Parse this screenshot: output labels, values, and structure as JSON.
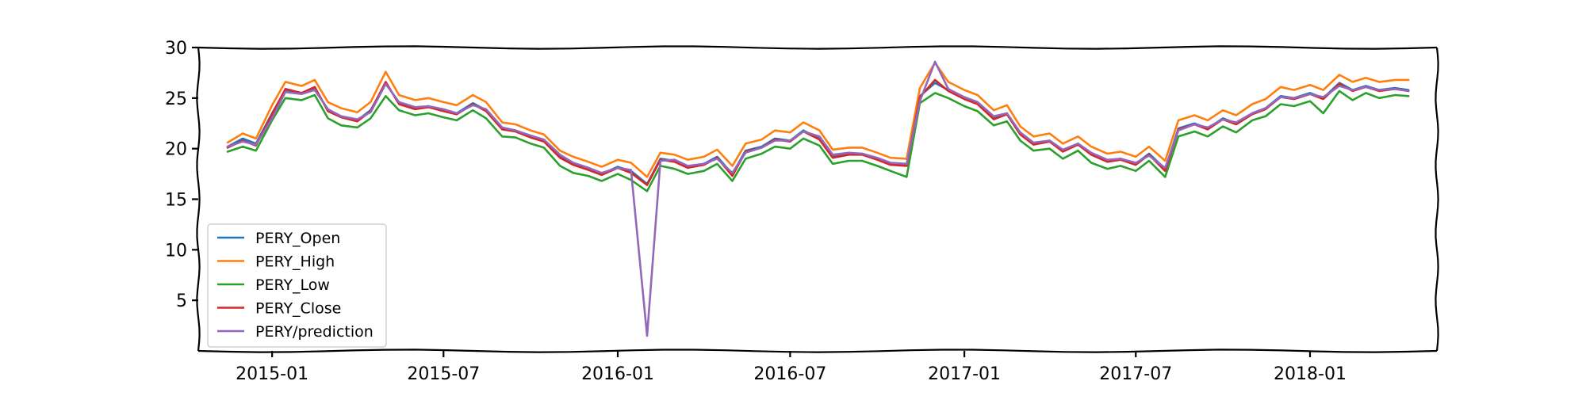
{
  "chart_data": {
    "type": "line",
    "title": "",
    "xlabel": "",
    "ylabel": "",
    "x_range": [
      "2014-10-15",
      "2018-05-15"
    ],
    "ylim": [
      0,
      30
    ],
    "y_ticks": [
      5,
      10,
      15,
      20,
      25,
      30
    ],
    "x_ticks": [
      "2015-01",
      "2015-07",
      "2016-01",
      "2016-07",
      "2017-01",
      "2017-07",
      "2018-01"
    ],
    "grid": false,
    "legend_position": "lower-left",
    "x_dates": [
      "2014-11-15",
      "2014-12-01",
      "2014-12-15",
      "2015-01-01",
      "2015-01-15",
      "2015-02-01",
      "2015-02-15",
      "2015-03-01",
      "2015-03-15",
      "2015-04-01",
      "2015-04-15",
      "2015-05-01",
      "2015-05-15",
      "2015-06-01",
      "2015-06-15",
      "2015-07-01",
      "2015-07-15",
      "2015-08-01",
      "2015-08-15",
      "2015-09-01",
      "2015-09-15",
      "2015-10-01",
      "2015-10-15",
      "2015-11-01",
      "2015-11-15",
      "2015-12-01",
      "2015-12-15",
      "2016-01-01",
      "2016-01-15",
      "2016-02-01",
      "2016-02-15",
      "2016-03-01",
      "2016-03-15",
      "2016-04-01",
      "2016-04-15",
      "2016-05-01",
      "2016-05-15",
      "2016-06-01",
      "2016-06-15",
      "2016-07-01",
      "2016-07-15",
      "2016-08-01",
      "2016-08-15",
      "2016-09-01",
      "2016-09-15",
      "2016-10-01",
      "2016-10-15",
      "2016-11-01",
      "2016-11-15",
      "2016-12-01",
      "2016-12-15",
      "2017-01-01",
      "2017-01-15",
      "2017-02-01",
      "2017-02-15",
      "2017-03-01",
      "2017-03-15",
      "2017-04-01",
      "2017-04-15",
      "2017-05-01",
      "2017-05-15",
      "2017-06-01",
      "2017-06-15",
      "2017-07-01",
      "2017-07-15",
      "2017-08-01",
      "2017-08-15",
      "2017-09-01",
      "2017-09-15",
      "2017-10-01",
      "2017-10-15",
      "2017-11-01",
      "2017-11-15",
      "2017-12-01",
      "2017-12-15",
      "2018-01-01",
      "2018-01-15",
      "2018-02-01",
      "2018-02-15",
      "2018-03-01",
      "2018-03-15",
      "2018-04-01",
      "2018-04-15"
    ],
    "series": [
      {
        "name": "PERY_Open",
        "color": "#1f77b4",
        "values": [
          20.2,
          21.0,
          20.5,
          23.5,
          25.8,
          25.5,
          26.0,
          23.8,
          23.2,
          22.8,
          23.8,
          26.5,
          24.5,
          24.0,
          24.2,
          23.8,
          23.5,
          24.5,
          23.8,
          22.0,
          21.8,
          21.2,
          20.8,
          19.2,
          18.5,
          18.0,
          17.5,
          18.2,
          17.8,
          16.5,
          19.0,
          18.8,
          18.2,
          18.5,
          19.2,
          17.5,
          19.8,
          20.2,
          21.0,
          20.8,
          21.8,
          21.0,
          19.2,
          19.5,
          19.5,
          19.0,
          18.5,
          18.4,
          25.2,
          26.5,
          25.8,
          25.0,
          24.5,
          23.0,
          23.5,
          21.5,
          20.5,
          20.8,
          19.8,
          20.5,
          19.5,
          18.8,
          19.0,
          18.5,
          19.5,
          18.0,
          22.0,
          22.5,
          22.0,
          23.0,
          22.5,
          23.5,
          24.0,
          25.2,
          25.0,
          25.5,
          25.0,
          26.5,
          25.8,
          26.2,
          25.8,
          26.0,
          25.8
        ]
      },
      {
        "name": "PERY_High",
        "color": "#ff7f0e",
        "values": [
          20.6,
          21.5,
          21.0,
          24.3,
          26.6,
          26.2,
          26.8,
          24.6,
          24.0,
          23.6,
          24.6,
          27.6,
          25.3,
          24.8,
          25.0,
          24.6,
          24.3,
          25.3,
          24.6,
          22.6,
          22.4,
          21.8,
          21.4,
          19.8,
          19.2,
          18.7,
          18.2,
          18.9,
          18.6,
          17.2,
          19.6,
          19.4,
          18.9,
          19.2,
          19.9,
          18.3,
          20.5,
          20.9,
          21.8,
          21.6,
          22.6,
          21.8,
          19.9,
          20.1,
          20.1,
          19.6,
          19.1,
          19.0,
          26.0,
          28.5,
          26.6,
          25.8,
          25.3,
          23.8,
          24.3,
          22.2,
          21.2,
          21.5,
          20.5,
          21.2,
          20.2,
          19.5,
          19.7,
          19.2,
          20.2,
          18.8,
          22.8,
          23.3,
          22.8,
          23.8,
          23.3,
          24.4,
          24.9,
          26.1,
          25.8,
          26.3,
          25.8,
          27.3,
          26.6,
          27.0,
          26.6,
          26.8,
          26.8
        ]
      },
      {
        "name": "PERY_Low",
        "color": "#2ca02c",
        "values": [
          19.7,
          20.2,
          19.8,
          22.8,
          25.0,
          24.8,
          25.3,
          23.0,
          22.3,
          22.1,
          23.0,
          25.2,
          23.8,
          23.3,
          23.5,
          23.1,
          22.8,
          23.8,
          23.0,
          21.2,
          21.1,
          20.5,
          20.1,
          18.3,
          17.6,
          17.3,
          16.8,
          17.5,
          16.9,
          15.8,
          18.3,
          18.0,
          17.5,
          17.8,
          18.5,
          16.8,
          19.0,
          19.5,
          20.2,
          20.0,
          21.0,
          20.3,
          18.5,
          18.8,
          18.8,
          18.3,
          17.8,
          17.2,
          24.5,
          25.5,
          25.0,
          24.2,
          23.7,
          22.3,
          22.7,
          20.8,
          19.8,
          20.0,
          19.0,
          19.8,
          18.6,
          18.0,
          18.3,
          17.8,
          18.8,
          17.2,
          21.2,
          21.7,
          21.2,
          22.2,
          21.6,
          22.8,
          23.2,
          24.4,
          24.2,
          24.7,
          23.5,
          25.7,
          24.8,
          25.5,
          25.0,
          25.3,
          25.2
        ]
      },
      {
        "name": "PERY_Close",
        "color": "#d62728",
        "values": [
          20.1,
          20.8,
          20.3,
          23.4,
          25.9,
          25.5,
          26.1,
          23.7,
          23.1,
          22.7,
          23.7,
          26.6,
          24.4,
          23.9,
          24.1,
          23.7,
          23.4,
          24.4,
          23.7,
          21.9,
          21.7,
          21.1,
          20.7,
          19.1,
          18.4,
          17.9,
          17.4,
          18.1,
          17.6,
          16.4,
          18.9,
          18.7,
          18.1,
          18.4,
          19.1,
          17.3,
          19.7,
          20.1,
          20.9,
          20.7,
          21.7,
          20.9,
          19.1,
          19.4,
          19.4,
          18.9,
          18.4,
          18.3,
          25.1,
          26.8,
          25.7,
          24.9,
          24.4,
          22.9,
          23.4,
          21.4,
          20.4,
          20.7,
          19.7,
          20.4,
          19.4,
          18.7,
          18.9,
          18.4,
          19.4,
          17.8,
          21.9,
          22.4,
          21.9,
          22.9,
          22.4,
          23.4,
          23.9,
          25.1,
          24.9,
          25.4,
          24.9,
          26.4,
          25.7,
          26.1,
          25.7,
          25.9,
          25.7
        ]
      },
      {
        "name": "PERY/prediction",
        "color": "#9467bd",
        "values": [
          20.2,
          20.7,
          20.4,
          23.0,
          25.6,
          25.4,
          25.8,
          23.9,
          23.2,
          22.9,
          23.6,
          26.4,
          24.6,
          24.1,
          24.2,
          23.9,
          23.5,
          24.3,
          23.9,
          22.1,
          21.8,
          21.3,
          20.9,
          19.4,
          18.6,
          18.1,
          17.6,
          18.1,
          17.9,
          1.5,
          18.8,
          18.9,
          18.3,
          18.5,
          19.0,
          17.6,
          19.6,
          20.1,
          20.8,
          20.8,
          21.7,
          21.2,
          19.4,
          19.6,
          19.5,
          19.1,
          18.6,
          18.5,
          24.7,
          28.6,
          25.9,
          25.1,
          24.6,
          23.2,
          23.5,
          21.6,
          20.6,
          20.8,
          19.9,
          20.5,
          19.6,
          18.9,
          19.0,
          18.6,
          19.3,
          18.1,
          21.8,
          22.4,
          22.1,
          22.9,
          22.6,
          23.5,
          24.0,
          25.1,
          25.0,
          25.4,
          25.1,
          26.2,
          25.8,
          26.1,
          25.8,
          25.9,
          25.7
        ]
      }
    ]
  }
}
